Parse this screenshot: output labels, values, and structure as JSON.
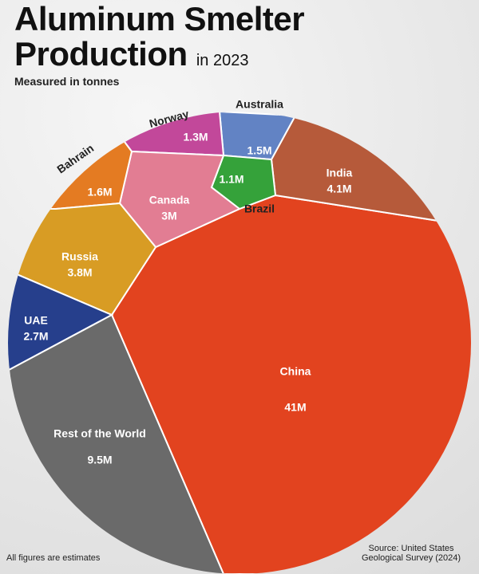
{
  "chart_data": {
    "type": "voronoi",
    "title": "Aluminum Smelter Production",
    "title_suffix": "in 2023",
    "subtitle": "Measured in tonnes",
    "categories": [
      "China",
      "India",
      "Australia",
      "Norway",
      "Brazil",
      "Canada",
      "Bahrain",
      "Russia",
      "UAE",
      "Rest of the World"
    ],
    "values": [
      41000000,
      4100000,
      1500000,
      1300000,
      1100000,
      3000000,
      1600000,
      3800000,
      2700000,
      9500000
    ],
    "value_labels": [
      "41M",
      "4.1M",
      "1.5M",
      "1.3M",
      "1.1M",
      "3M",
      "1.6M",
      "3.8M",
      "2.7M",
      "9.5M"
    ],
    "colors": [
      "#e2431f",
      "#b65a3a",
      "#6283c4",
      "#c2489a",
      "#35a23a",
      "#e27d93",
      "#e47b22",
      "#d89c24",
      "#263f8c",
      "#6a6a6a"
    ],
    "note": "All figures are estimates",
    "source": "Source: United States Geological Survey (2024)"
  }
}
